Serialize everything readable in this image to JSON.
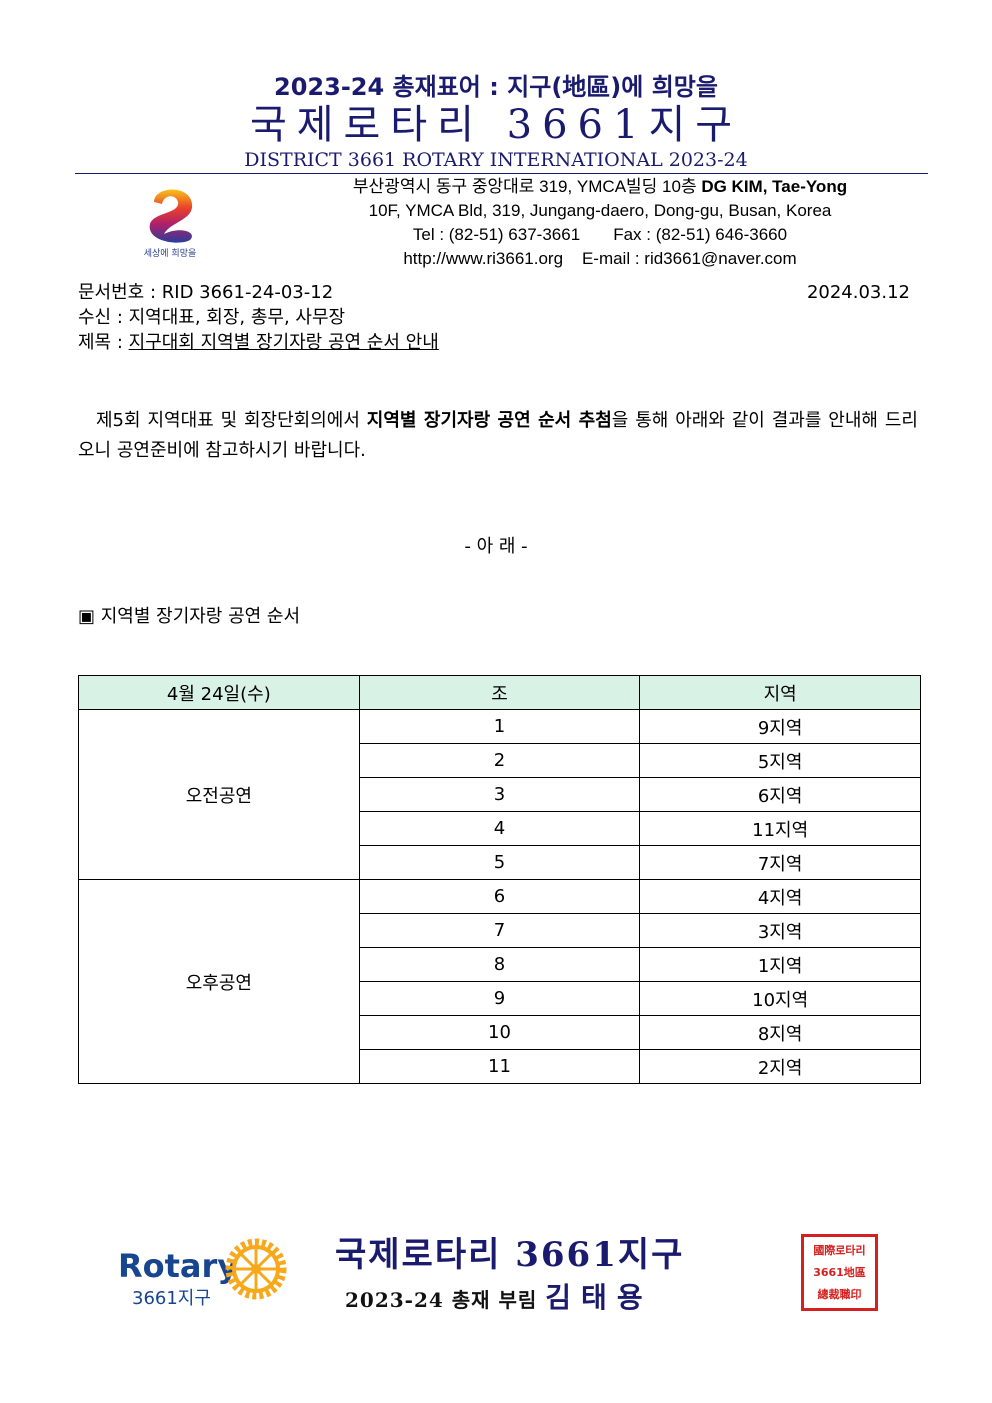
{
  "header": {
    "slogan": "2023-24 총재표어 : 지구(地區)에 희망을",
    "title": "국제로타리 3661지구",
    "english": "DISTRICT 3661 ROTARY INTERNATIONAL  2023-24",
    "address_kr": "부산광역시 동구 중앙대로 319, YMCA빌딩 10층",
    "dg": "DG KIM, Tae-Yong",
    "address_en": "10F, YMCA Bld, 319, Jungang-daero, Dong-gu, Busan, Korea",
    "tel": "Tel : (82-51) 637-3661",
    "fax": "Fax : (82-51) 646-3660",
    "web": "http://www.ri3661.org",
    "email": "E-mail : rid3661@naver.com",
    "logo_caption": "세상에 희망을"
  },
  "meta": {
    "doc_no": "문서번호 : RID 3661-24-03-12",
    "date": "2024.03.12",
    "recipient": "수신 : 지역대표, 회장, 총무, 사무장",
    "subject_label": "제목 : ",
    "subject": "지구대회 지역별 장기자랑 공연 순서 안내"
  },
  "body": {
    "pre": "제5회 지역대표 및 회장단회의에서 ",
    "bold": "지역별 장기자랑 공연 순서 추첨",
    "post": "을 통해 아래와 같이 결과를 안내해 드리오니 공연준비에 참고하시기 바랍니다."
  },
  "notice": "- 아   래 -",
  "section": "▣ 지역별 장기자랑 공연 순서",
  "table": {
    "headers": [
      "4월 24일(수)",
      "조",
      "지역"
    ],
    "groups": [
      {
        "label": "오전공연",
        "rows": [
          [
            "1",
            "9지역"
          ],
          [
            "2",
            "5지역"
          ],
          [
            "3",
            "6지역"
          ],
          [
            "4",
            "11지역"
          ],
          [
            "5",
            "7지역"
          ]
        ]
      },
      {
        "label": "오후공연",
        "rows": [
          [
            "6",
            "4지역"
          ],
          [
            "7",
            "3지역"
          ],
          [
            "8",
            "1지역"
          ],
          [
            "9",
            "10지역"
          ],
          [
            "10",
            "8지역"
          ],
          [
            "11",
            "2지역"
          ]
        ]
      }
    ]
  },
  "footer": {
    "rotary": "Rotary",
    "district": "3661지구",
    "title": "국제로타리 3661지구",
    "sign_prefix": "2023-24 총재 부림",
    "name": "김태용",
    "seal": "國際로타리3661地區總裁職印"
  },
  "colors": {
    "navy": "#1a1a6e",
    "table_header": "#d9f2e6",
    "rotary_blue": "#17458f",
    "rotary_gold": "#f7a81b",
    "seal_red": "#d42020"
  }
}
